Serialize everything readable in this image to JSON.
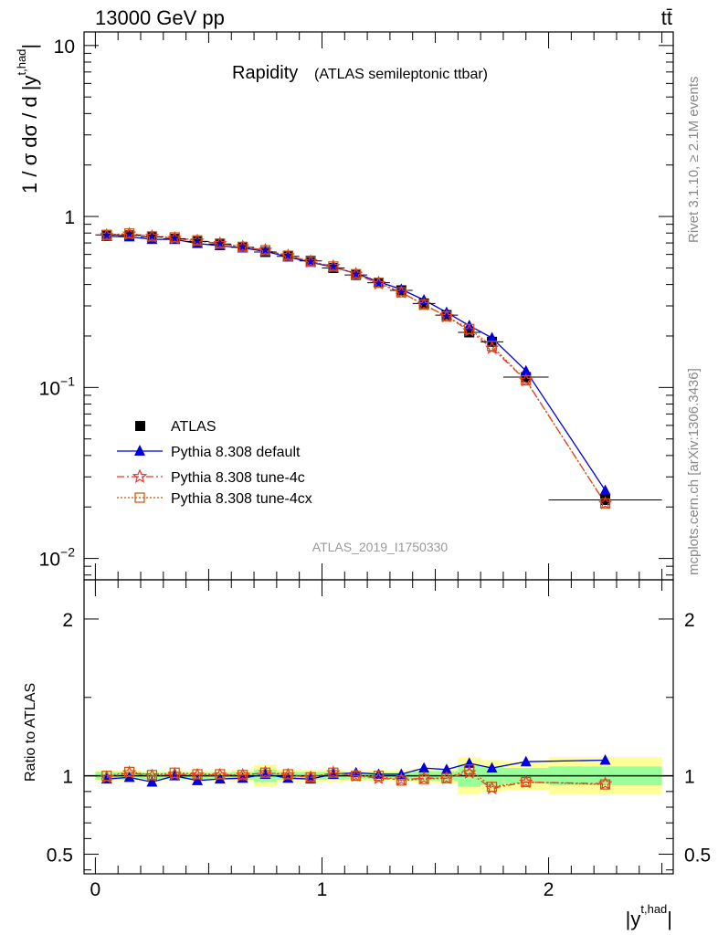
{
  "header": {
    "left": "13000 GeV pp",
    "right": "tt̄"
  },
  "side_labels": {
    "rivet": "Rivet 3.1.10, ≥ 2.1M events",
    "mcplots": "mcplots.cern.ch [arXiv:1306.3436]"
  },
  "colors": {
    "data": "#000000",
    "default": "#0000dd",
    "tune4c": "#ee3333",
    "tune4cx": "#cc5500",
    "band_inner": "#99ff99",
    "band_outer": "#ffff99"
  },
  "chart_data": [
    {
      "type": "line",
      "title": "Rapidity",
      "subtitle": "(ATLAS semileptonic ttbar)",
      "ylabel": "1 / σ dσ / d |y^{t,had}|",
      "ylabel_main": "1 / σ dσ / d |y",
      "ylabel_sup": "t,had",
      "ylabel_end": "|",
      "yscale": "log",
      "xlim": [
        -0.05,
        2.55
      ],
      "ylim": [
        0.0075,
        12
      ],
      "ytick_labels": [
        {
          "value": 10,
          "base": "10",
          "exp": ""
        },
        {
          "value": 1,
          "base": "1",
          "exp": ""
        },
        {
          "value": 0.1,
          "base": "10",
          "exp": "−1"
        },
        {
          "value": 0.01,
          "base": "10",
          "exp": "−2"
        }
      ],
      "watermark": "ATLAS_2019_I1750330",
      "legend_position": "bottom-left",
      "x": [
        0.05,
        0.15,
        0.25,
        0.35,
        0.45,
        0.55,
        0.65,
        0.75,
        0.85,
        0.95,
        1.05,
        1.15,
        1.25,
        1.35,
        1.45,
        1.55,
        1.65,
        1.75,
        1.9,
        2.25
      ],
      "bin_edges": [
        0.0,
        0.1,
        0.2,
        0.3,
        0.4,
        0.5,
        0.6,
        0.7,
        0.8,
        0.9,
        1.0,
        1.1,
        1.2,
        1.3,
        1.4,
        1.5,
        1.6,
        1.7,
        1.8,
        2.0,
        2.5
      ],
      "series": [
        {
          "name": "ATLAS",
          "marker": "square",
          "values": [
            0.78,
            0.775,
            0.76,
            0.74,
            0.715,
            0.69,
            0.66,
            0.62,
            0.585,
            0.55,
            0.5,
            0.455,
            0.41,
            0.37,
            0.31,
            0.265,
            0.21,
            0.185,
            0.115,
            0.022
          ]
        },
        {
          "name": "Pythia 8.308 default",
          "marker": "triangle",
          "values": [
            0.765,
            0.76,
            0.735,
            0.735,
            0.695,
            0.675,
            0.655,
            0.625,
            0.58,
            0.54,
            0.505,
            0.465,
            0.415,
            0.375,
            0.325,
            0.275,
            0.23,
            0.195,
            0.125,
            0.025
          ]
        },
        {
          "name": "Pythia 8.308 tune-4c",
          "marker": "star",
          "values": [
            0.775,
            0.79,
            0.765,
            0.745,
            0.72,
            0.695,
            0.665,
            0.635,
            0.59,
            0.545,
            0.51,
            0.46,
            0.405,
            0.36,
            0.305,
            0.26,
            0.215,
            0.17,
            0.11,
            0.021
          ]
        },
        {
          "name": "Pythia 8.308 tune-4cx",
          "marker": "open-square",
          "values": [
            0.78,
            0.795,
            0.765,
            0.755,
            0.725,
            0.695,
            0.665,
            0.635,
            0.59,
            0.545,
            0.51,
            0.46,
            0.41,
            0.36,
            0.305,
            0.26,
            0.22,
            0.175,
            0.11,
            0.021
          ]
        }
      ]
    },
    {
      "type": "line",
      "ylabel": "Ratio to ATLAS",
      "xlabel": "|y^{t,had}|",
      "xlabel_main": "|y",
      "xlabel_sup": "t,had",
      "xlabel_end": "|",
      "xlim": [
        -0.05,
        2.55
      ],
      "ylim": [
        0.375,
        2.25
      ],
      "yticks": [
        0.5,
        1,
        2
      ],
      "ytick_labels": [
        "0.5",
        "1",
        "2"
      ],
      "xticks": [
        0,
        1,
        2
      ],
      "xtick_labels": [
        "0",
        "1",
        "2"
      ],
      "band_inner": [
        0.025,
        0.025,
        0.02,
        0.02,
        0.02,
        0.02,
        0.025,
        0.04,
        0.025,
        0.025,
        0.025,
        0.02,
        0.02,
        0.02,
        0.03,
        0.03,
        0.07,
        0.06,
        0.05,
        0.06
      ],
      "band_outer": [
        0.035,
        0.035,
        0.03,
        0.03,
        0.03,
        0.03,
        0.04,
        0.07,
        0.04,
        0.04,
        0.04,
        0.03,
        0.035,
        0.035,
        0.045,
        0.05,
        0.12,
        0.1,
        0.09,
        0.12
      ],
      "series": [
        {
          "name": "Pythia 8.308 default",
          "values": [
            0.98,
            0.99,
            0.96,
            1.0,
            0.97,
            0.98,
            0.985,
            1.01,
            0.985,
            0.98,
            1.01,
            1.02,
            1.01,
            1.01,
            1.05,
            1.04,
            1.08,
            1.05,
            1.09,
            1.1
          ]
        },
        {
          "name": "Pythia 8.308 tune-4c",
          "values": [
            0.99,
            1.02,
            1.0,
            1.01,
            1.005,
            1.005,
            1.005,
            1.02,
            1.005,
            0.99,
            1.02,
            1.0,
            0.985,
            0.975,
            0.985,
            0.985,
            1.02,
            0.92,
            0.96,
            0.95
          ]
        },
        {
          "name": "Pythia 8.308 tune-4cx",
          "values": [
            1.0,
            1.025,
            1.005,
            1.02,
            1.01,
            1.01,
            1.005,
            1.02,
            1.01,
            0.99,
            1.02,
            1.0,
            1.0,
            0.97,
            0.98,
            0.985,
            1.04,
            0.93,
            0.96,
            0.945
          ]
        }
      ]
    }
  ]
}
